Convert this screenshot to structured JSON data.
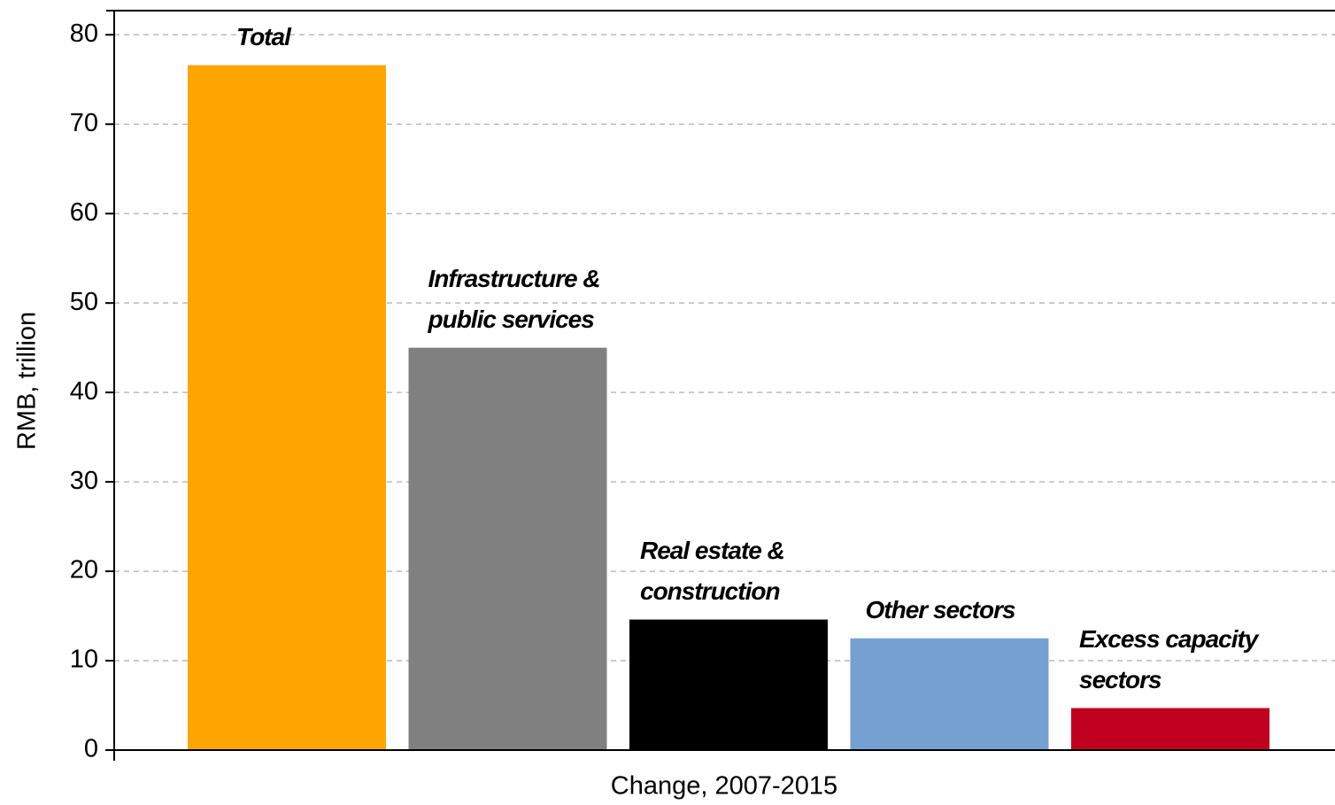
{
  "chart_data": {
    "type": "bar",
    "categories": [
      [
        "Total"
      ],
      [
        "Infrastructure &",
        "public services"
      ],
      [
        "Real estate &",
        "construction"
      ],
      [
        "Other sectors"
      ],
      [
        "Excess capacity",
        "sectors"
      ]
    ],
    "values": [
      76.6,
      45.0,
      14.6,
      12.5,
      4.7
    ],
    "colors": [
      "#ffa500",
      "#808080",
      "#000000",
      "#74a1d2",
      "#c1001f"
    ],
    "x_label": "Change, 2007-2015",
    "y_label": "RMB, trillion",
    "ylim": [
      0,
      82.7
    ],
    "yticks": [
      0,
      10,
      20,
      30,
      40,
      50,
      60,
      70,
      80
    ],
    "grid": true
  }
}
